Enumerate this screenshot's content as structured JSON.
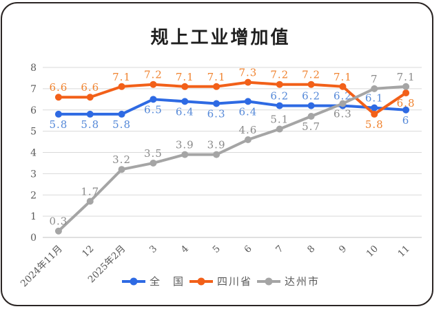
{
  "title": "规上工业增加值",
  "chart_data": {
    "type": "line",
    "title": "规上工业增加值",
    "categories": [
      "2024年11月",
      "12",
      "2025年2月",
      "3",
      "4",
      "5",
      "6",
      "7",
      "8",
      "9",
      "10",
      "11"
    ],
    "series": [
      {
        "name": "全　国",
        "color": "#2e6ae3",
        "label_color": "#5488d8",
        "values": [
          5.8,
          5.8,
          5.8,
          6.5,
          6.4,
          6.3,
          6.4,
          6.2,
          6.2,
          6.2,
          6.1,
          6
        ],
        "label_side": [
          "below",
          "below",
          "below",
          "below",
          "below",
          "below",
          "below",
          "above",
          "above",
          "above",
          "above",
          "below"
        ]
      },
      {
        "name": "四川省",
        "color": "#f26019",
        "label_color": "#f0832f",
        "values": [
          6.6,
          6.6,
          7.1,
          7.2,
          7.1,
          7.1,
          7.3,
          7.2,
          7.2,
          7.1,
          5.8,
          6.8
        ],
        "label_side": [
          "above",
          "above",
          "above",
          "above",
          "above",
          "above",
          "above",
          "above",
          "above",
          "above",
          "below",
          "below"
        ]
      },
      {
        "name": "达州市",
        "color": "#a5a5a5",
        "label_color": "#8a8a8a",
        "values": [
          0.3,
          1.7,
          3.2,
          3.5,
          3.9,
          3.9,
          4.6,
          5.1,
          5.7,
          6.3,
          7,
          7.1
        ],
        "label_side": [
          "above",
          "above",
          "above",
          "above",
          "above",
          "above",
          "above",
          "above",
          "below",
          "below",
          "above",
          "above"
        ]
      }
    ],
    "ylim": [
      0,
      8
    ],
    "y_ticks": [
      0,
      1,
      2,
      3,
      4,
      5,
      6,
      7,
      8
    ],
    "grid": true,
    "legend_position": "bottom",
    "x_label_rotation": -45
  },
  "colors": {
    "background": "#ffffff",
    "card_border": "#2a2423",
    "grid_line": "#d9d9d9",
    "axis_line": "#c2c2c2",
    "tick_text": "#595959",
    "title_text": "#1f1f1f"
  }
}
